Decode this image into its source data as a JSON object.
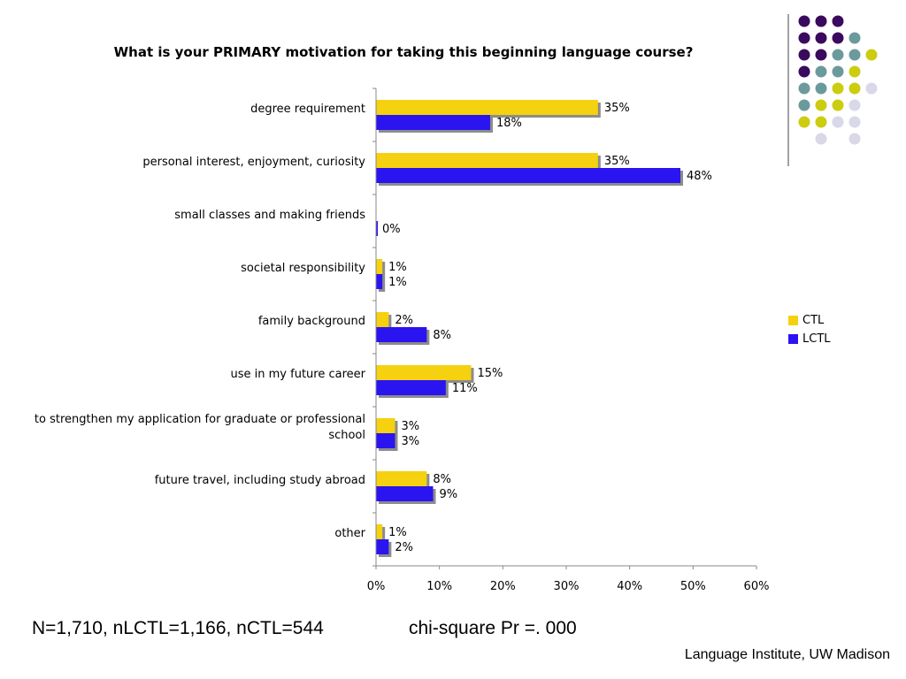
{
  "chart_data": {
    "type": "bar",
    "orientation": "horizontal",
    "title": "What is your PRIMARY motivation for taking this beginning language course?",
    "categories": [
      [
        "degree requirement"
      ],
      [
        "personal interest, enjoyment, curiosity"
      ],
      [
        "small classes and making friends"
      ],
      [
        "societal responsibility"
      ],
      [
        "family background"
      ],
      [
        "use in my future career"
      ],
      [
        "to strengthen my application for graduate or professional",
        "school"
      ],
      [
        "future travel, including study abroad"
      ],
      [
        "other"
      ]
    ],
    "series": [
      {
        "name": "CTL",
        "color": "#f5d10f",
        "values": [
          35,
          35,
          0,
          1,
          2,
          15,
          3,
          8,
          1
        ],
        "labels": [
          "35%",
          "35%",
          "",
          "1%",
          "2%",
          "15%",
          "3%",
          "8%",
          "1%"
        ]
      },
      {
        "name": "LCTL",
        "color": "#2a14f0",
        "values": [
          18,
          48,
          0,
          1,
          8,
          11,
          3,
          9,
          2
        ],
        "labels": [
          "18%",
          "48%",
          "0%",
          "1%",
          "8%",
          "11%",
          "3%",
          "9%",
          "2%"
        ]
      }
    ],
    "xlim": [
      0,
      60
    ],
    "xticks": [
      "0%",
      "10%",
      "20%",
      "30%",
      "40%",
      "50%",
      "60%"
    ],
    "grid": false,
    "legend_position": "right"
  },
  "footer": {
    "stats": "N=1,710, nLCTL=1,166, nCTL=544",
    "chi_square": "chi-square Pr =. 000",
    "credit": "Language Institute, UW Madison"
  },
  "decoration": {
    "dot_colors": {
      "purple": "#3a0a5e",
      "teal": "#6c9a9c",
      "yellow": "#cccc10",
      "lavender": "#d8d8e8"
    },
    "divider_color": "#444444"
  }
}
